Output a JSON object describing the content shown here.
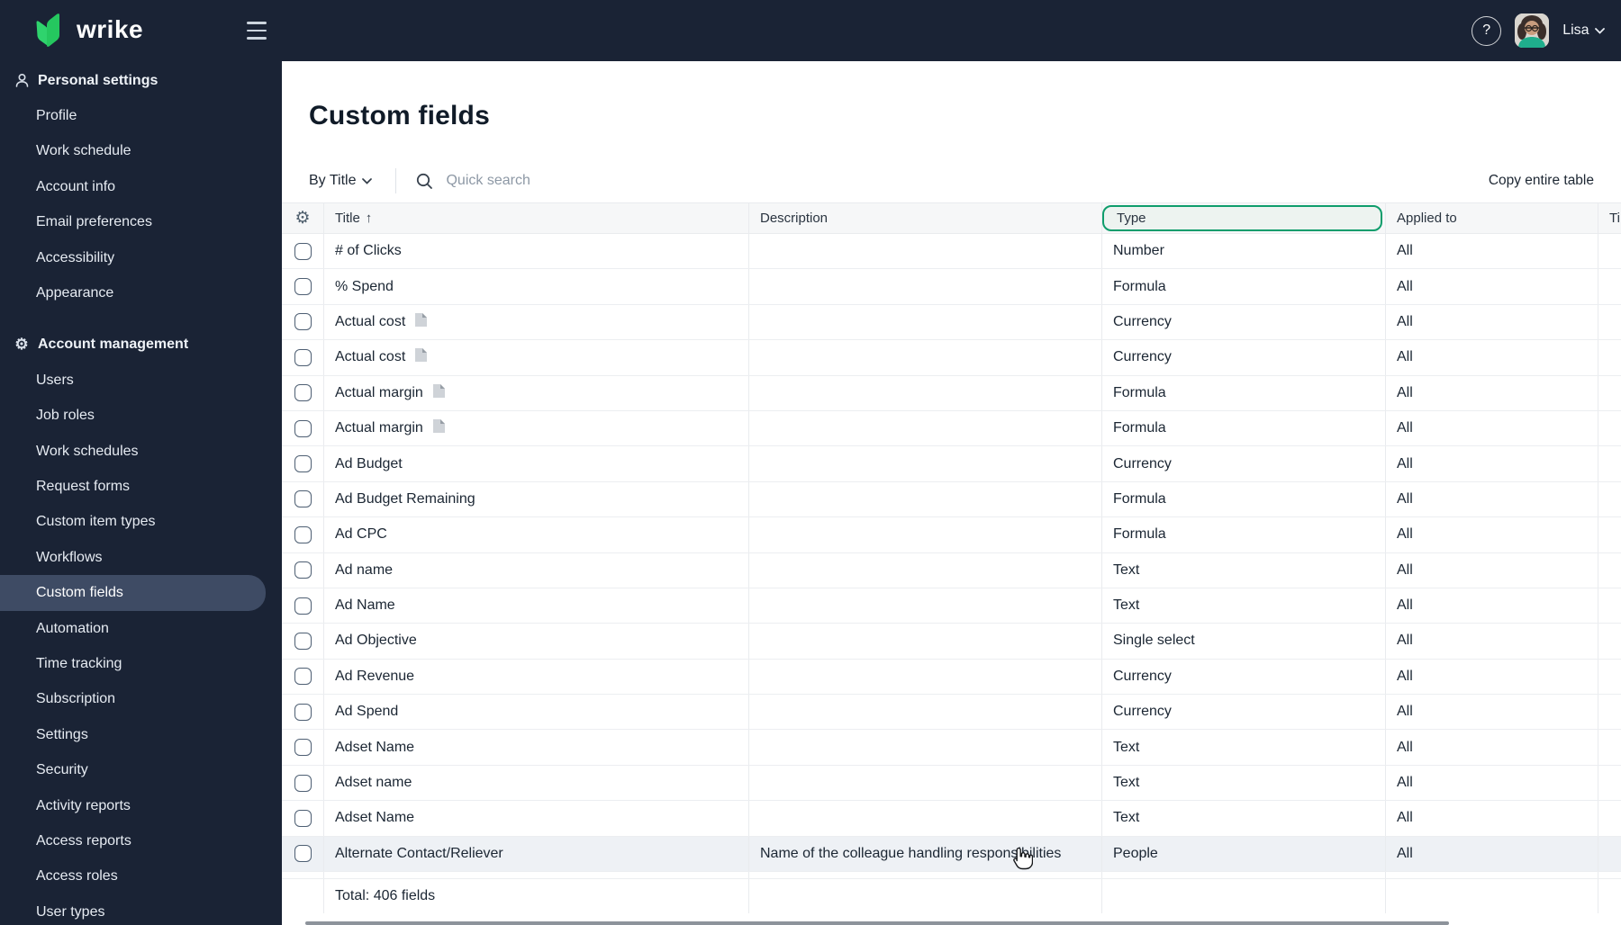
{
  "colors": {
    "brand_navy": "#1a2335",
    "brand_green": "#2fd36d",
    "highlight_teal": "#0f9d6c",
    "selected_item_bg": "#3e4b64",
    "hover_row_bg": "#eef1f5"
  },
  "topbar": {
    "logo_text": "wrike",
    "help_label": "?",
    "user_name": "Lisa"
  },
  "sidebar": {
    "sections": [
      {
        "title": "Personal settings",
        "icon": "person-icon",
        "items": [
          {
            "label": "Profile"
          },
          {
            "label": "Work schedule"
          },
          {
            "label": "Account info"
          },
          {
            "label": "Email preferences"
          },
          {
            "label": "Accessibility"
          },
          {
            "label": "Appearance"
          }
        ]
      },
      {
        "title": "Account management",
        "icon": "gear-icon",
        "items": [
          {
            "label": "Users"
          },
          {
            "label": "Job roles"
          },
          {
            "label": "Work schedules"
          },
          {
            "label": "Request forms"
          },
          {
            "label": "Custom item types"
          },
          {
            "label": "Workflows"
          },
          {
            "label": "Custom fields",
            "selected": true
          },
          {
            "label": "Automation"
          },
          {
            "label": "Time tracking"
          },
          {
            "label": "Subscription"
          },
          {
            "label": "Settings"
          },
          {
            "label": "Security"
          },
          {
            "label": "Activity reports"
          },
          {
            "label": "Access reports"
          },
          {
            "label": "Access roles"
          },
          {
            "label": "User types"
          }
        ]
      }
    ]
  },
  "main": {
    "page_title": "Custom fields",
    "toolbar": {
      "filter_label": "By Title",
      "search_placeholder": "Quick search",
      "copy_label": "Copy entire table"
    },
    "table": {
      "columns": {
        "title": "Title",
        "description": "Description",
        "type": "Type",
        "applied_to": "Applied to",
        "clipped": "Ti"
      },
      "sorted_by": "Title",
      "highlighted_column": "Type",
      "rows": [
        {
          "title": "# of Clicks",
          "description": "",
          "type": "Number",
          "applied_to": "All",
          "has_note": false
        },
        {
          "title": "% Spend",
          "description": "",
          "type": "Formula",
          "applied_to": "All",
          "has_note": false
        },
        {
          "title": "Actual cost",
          "description": "",
          "type": "Currency",
          "applied_to": "All",
          "has_note": true
        },
        {
          "title": "Actual cost",
          "description": "",
          "type": "Currency",
          "applied_to": "All",
          "has_note": true
        },
        {
          "title": "Actual margin",
          "description": "",
          "type": "Formula",
          "applied_to": "All",
          "has_note": true
        },
        {
          "title": "Actual margin",
          "description": "",
          "type": "Formula",
          "applied_to": "All",
          "has_note": true
        },
        {
          "title": "Ad Budget",
          "description": "",
          "type": "Currency",
          "applied_to": "All",
          "has_note": false
        },
        {
          "title": "Ad Budget Remaining",
          "description": "",
          "type": "Formula",
          "applied_to": "All",
          "has_note": false
        },
        {
          "title": "Ad CPC",
          "description": "",
          "type": "Formula",
          "applied_to": "All",
          "has_note": false
        },
        {
          "title": "Ad name",
          "description": "",
          "type": "Text",
          "applied_to": "All",
          "has_note": false
        },
        {
          "title": "Ad Name",
          "description": "",
          "type": "Text",
          "applied_to": "All",
          "has_note": false
        },
        {
          "title": "Ad Objective",
          "description": "",
          "type": "Single select",
          "applied_to": "All",
          "has_note": false
        },
        {
          "title": "Ad Revenue",
          "description": "",
          "type": "Currency",
          "applied_to": "All",
          "has_note": false
        },
        {
          "title": "Ad Spend",
          "description": "",
          "type": "Currency",
          "applied_to": "All",
          "has_note": false
        },
        {
          "title": "Adset Name",
          "description": "",
          "type": "Text",
          "applied_to": "All",
          "has_note": false
        },
        {
          "title": "Adset name",
          "description": "",
          "type": "Text",
          "applied_to": "All",
          "has_note": false
        },
        {
          "title": "Adset Name",
          "description": "",
          "type": "Text",
          "applied_to": "All",
          "has_note": false
        },
        {
          "title": "Alternate Contact/Reliever",
          "description": "Name of the colleague handling responsibilities",
          "type": "People",
          "applied_to": "All",
          "has_note": false,
          "hover": true
        }
      ],
      "total_label": "Total: 406 fields"
    }
  }
}
